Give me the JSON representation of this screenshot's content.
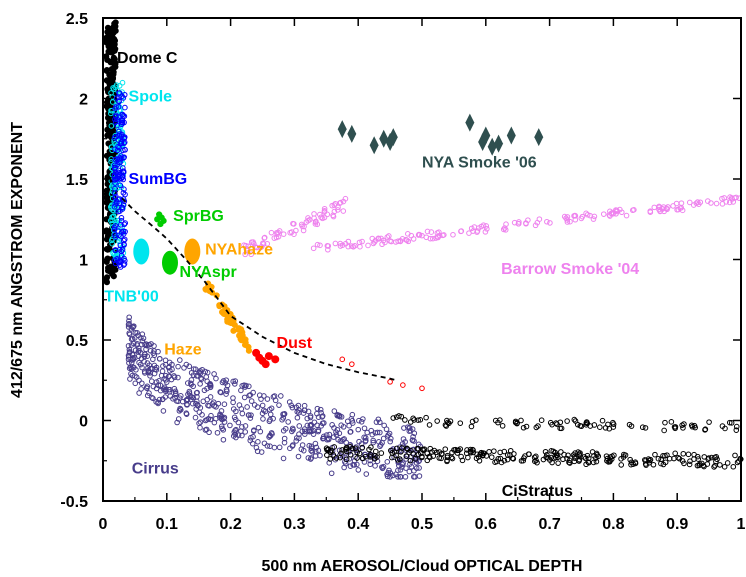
{
  "chart_data": {
    "type": "scatter",
    "title": "",
    "xlabel": "500 nm AEROSOL/Cloud OPTICAL DEPTH",
    "ylabel": "412/675 nm ANGSTROM EXPONENT",
    "xlim": [
      0,
      1
    ],
    "ylim": [
      -0.5,
      2.5
    ],
    "grid": false,
    "x_ticks": [
      "0",
      "0.1",
      "0.2",
      "0.3",
      "0.4",
      "0.5",
      "0.6",
      "0.7",
      "0.8",
      "0.9",
      "1"
    ],
    "y_ticks": [
      "-0.5",
      "0",
      "0.5",
      "1",
      "1.5",
      "2",
      "2.5"
    ],
    "labels": [
      {
        "text": "Dome C",
        "x": 0.022,
        "y": 2.22,
        "color": "#000000"
      },
      {
        "text": "Spole",
        "x": 0.04,
        "y": 1.98,
        "color": "#00e5ee"
      },
      {
        "text": "SumBG",
        "x": 0.04,
        "y": 1.47,
        "color": "#0000ff"
      },
      {
        "text": "SprBG",
        "x": 0.11,
        "y": 1.24,
        "color": "#00cc00"
      },
      {
        "text": "NYAhaze",
        "x": 0.16,
        "y": 1.03,
        "color": "#ffa500"
      },
      {
        "text": "NYAspr",
        "x": 0.12,
        "y": 0.89,
        "color": "#00cc00"
      },
      {
        "text": "TNB'00",
        "x": 0.002,
        "y": 0.74,
        "color": "#00e5ee"
      },
      {
        "text": "Haze",
        "x": 0.096,
        "y": 0.41,
        "color": "#ffa500"
      },
      {
        "text": "Dust",
        "x": 0.272,
        "y": 0.45,
        "color": "#ff0000"
      },
      {
        "text": "NYA Smoke '06",
        "x": 0.5,
        "y": 1.57,
        "color": "#2f4f4f"
      },
      {
        "text": "Barrow Smoke '04",
        "x": 0.624,
        "y": 0.91,
        "color": "#ee82ee"
      },
      {
        "text": "Cirrus",
        "x": 0.045,
        "y": -0.33,
        "color": "#483d8b"
      },
      {
        "text": "CiStratus",
        "x": 0.625,
        "y": -0.47,
        "color": "#000000"
      }
    ],
    "series": [
      {
        "name": "Dome C",
        "color": "#000000",
        "marker": "circle",
        "x_range": [
          0.005,
          0.02
        ],
        "y_range": [
          0.85,
          2.48
        ]
      },
      {
        "name": "Spole",
        "color": "#00e5ee",
        "marker": "circle",
        "x_range": [
          0.012,
          0.032
        ],
        "y_range": [
          1.0,
          2.1
        ]
      },
      {
        "name": "SumBG",
        "color": "#0000ff",
        "marker": "circle",
        "x_range": [
          0.018,
          0.035
        ],
        "y_range": [
          0.95,
          2.05
        ]
      },
      {
        "name": "SprBG",
        "color": "#00cc00",
        "marker": "circle",
        "x": [
          0.085,
          0.088,
          0.09,
          0.092,
          0.095
        ],
        "y": [
          1.25,
          1.28,
          1.22,
          1.26,
          1.24
        ]
      },
      {
        "name": "NYAhaze",
        "color": "#ffa500",
        "marker": "ellipse",
        "x": [
          0.14
        ],
        "y": [
          1.05
        ]
      },
      {
        "name": "NYAspr",
        "color": "#00cc00",
        "marker": "ellipse",
        "x": [
          0.105
        ],
        "y": [
          0.98
        ]
      },
      {
        "name": "TNB'00",
        "color": "#00e5ee",
        "marker": "ellipse",
        "x": [
          0.06
        ],
        "y": [
          1.05
        ]
      },
      {
        "name": "Haze",
        "color": "#ffa500",
        "marker": "circle",
        "x_range": [
          0.16,
          0.23
        ],
        "y_range": [
          0.45,
          0.85
        ]
      },
      {
        "name": "Dust",
        "color": "#ff0000",
        "marker": "circle",
        "x": [
          0.24,
          0.245,
          0.25,
          0.255,
          0.26,
          0.27,
          0.375,
          0.39,
          0.45,
          0.47,
          0.5
        ],
        "y": [
          0.42,
          0.39,
          0.37,
          0.35,
          0.4,
          0.38,
          0.38,
          0.35,
          0.24,
          0.22,
          0.2
        ]
      },
      {
        "name": "NYA Smoke '06",
        "color": "#2f4f4f",
        "marker": "diamond",
        "x": [
          0.375,
          0.39,
          0.425,
          0.44,
          0.45,
          0.455,
          0.575,
          0.595,
          0.6,
          0.61,
          0.62,
          0.64,
          0.683
        ],
        "y": [
          1.81,
          1.78,
          1.71,
          1.75,
          1.73,
          1.76,
          1.85,
          1.73,
          1.77,
          1.7,
          1.72,
          1.77,
          1.76
        ]
      },
      {
        "name": "Barrow Smoke '04",
        "color": "#ee82ee",
        "marker": "circle",
        "x_range": [
          0.18,
          1.0
        ],
        "y_range": [
          1.05,
          1.42
        ]
      },
      {
        "name": "Cirrus",
        "color": "#483d8b",
        "marker": "circle",
        "x_range": [
          0.04,
          0.5
        ],
        "y_range": [
          -0.35,
          0.7
        ]
      },
      {
        "name": "CiStratus",
        "color": "#000000",
        "marker": "circle",
        "x_range": [
          0.35,
          1.0
        ],
        "y_range": [
          -0.3,
          0.05
        ]
      }
    ],
    "fit_curve": {
      "style": "dashed",
      "color": "#000000",
      "x": [
        0.03,
        0.05,
        0.08,
        0.1,
        0.13,
        0.16,
        0.2,
        0.25,
        0.3,
        0.35,
        0.4,
        0.45,
        0.46
      ],
      "y": [
        1.38,
        1.3,
        1.2,
        1.13,
        1.0,
        0.86,
        0.65,
        0.52,
        0.42,
        0.35,
        0.3,
        0.26,
        0.25
      ]
    }
  }
}
